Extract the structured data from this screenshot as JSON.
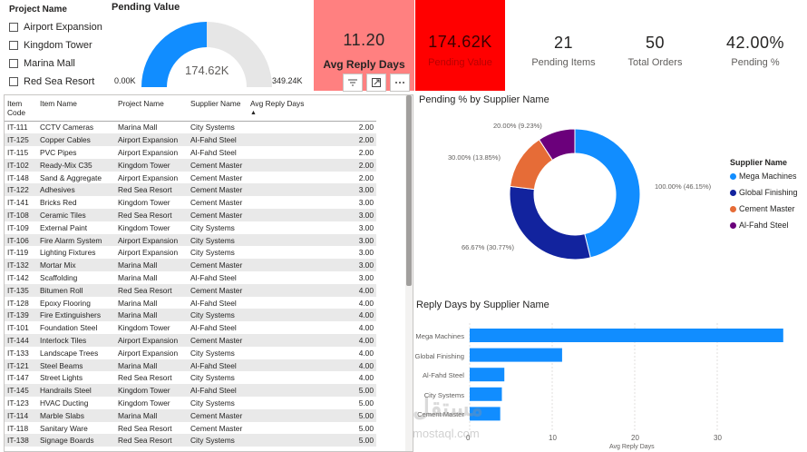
{
  "slicer": {
    "title": "Project Name",
    "items": [
      "Airport Expansion",
      "Kingdom Tower",
      "Marina Mall",
      "Red Sea Resort"
    ]
  },
  "gauge": {
    "title": "Pending Value",
    "value": "174.62K",
    "min": "0.00K",
    "max": "349.24K",
    "fill_fraction": 0.5,
    "fill_color": "#118dff",
    "track_color": "#e6e6e6"
  },
  "cards": {
    "avg_reply": {
      "value": "11.20",
      "label": "Avg Reply Days",
      "bg": "#ff8080"
    },
    "pending_value": {
      "value": "174.62K",
      "label": "Pending Value",
      "bg": "#ff0000"
    },
    "pending_items": {
      "value": "21",
      "label": "Pending Items"
    },
    "total_orders": {
      "value": "50",
      "label": "Total Orders"
    },
    "pending_pct": {
      "value": "42.00%",
      "label": "Pending %"
    }
  },
  "visual_header": {
    "icons": [
      "filter-icon",
      "focus-mode-icon",
      "more-options-icon"
    ]
  },
  "table": {
    "columns": [
      "Item Code",
      "Item Name",
      "Project Name",
      "Supplier Name",
      "Avg Reply Days"
    ],
    "sort_column": "Avg Reply Days",
    "rows": [
      [
        "IT-111",
        "CCTV Cameras",
        "Marina Mall",
        "City Systems",
        "2.00"
      ],
      [
        "IT-125",
        "Copper Cables",
        "Airport Expansion",
        "Al-Fahd Steel",
        "2.00"
      ],
      [
        "IT-115",
        "PVC Pipes",
        "Airport Expansion",
        "Al-Fahd Steel",
        "2.00"
      ],
      [
        "IT-102",
        "Ready-Mix C35",
        "Kingdom Tower",
        "Cement Master",
        "2.00"
      ],
      [
        "IT-148",
        "Sand & Aggregate",
        "Airport Expansion",
        "Cement Master",
        "2.00"
      ],
      [
        "IT-122",
        "Adhesives",
        "Red Sea Resort",
        "Cement Master",
        "3.00"
      ],
      [
        "IT-141",
        "Bricks Red",
        "Kingdom Tower",
        "Cement Master",
        "3.00"
      ],
      [
        "IT-108",
        "Ceramic Tiles",
        "Red Sea Resort",
        "Cement Master",
        "3.00"
      ],
      [
        "IT-109",
        "External Paint",
        "Kingdom Tower",
        "City Systems",
        "3.00"
      ],
      [
        "IT-106",
        "Fire Alarm System",
        "Airport Expansion",
        "City Systems",
        "3.00"
      ],
      [
        "IT-119",
        "Lighting Fixtures",
        "Airport Expansion",
        "City Systems",
        "3.00"
      ],
      [
        "IT-132",
        "Mortar Mix",
        "Marina Mall",
        "Cement Master",
        "3.00"
      ],
      [
        "IT-142",
        "Scaffolding",
        "Marina Mall",
        "Al-Fahd Steel",
        "3.00"
      ],
      [
        "IT-135",
        "Bitumen Roll",
        "Red Sea Resort",
        "Cement Master",
        "4.00"
      ],
      [
        "IT-128",
        "Epoxy Flooring",
        "Marina Mall",
        "Al-Fahd Steel",
        "4.00"
      ],
      [
        "IT-139",
        "Fire Extinguishers",
        "Marina Mall",
        "City Systems",
        "4.00"
      ],
      [
        "IT-101",
        "Foundation Steel",
        "Kingdom Tower",
        "Al-Fahd Steel",
        "4.00"
      ],
      [
        "IT-144",
        "Interlock Tiles",
        "Airport Expansion",
        "Cement Master",
        "4.00"
      ],
      [
        "IT-133",
        "Landscape Trees",
        "Airport Expansion",
        "City Systems",
        "4.00"
      ],
      [
        "IT-121",
        "Steel Beams",
        "Marina Mall",
        "Al-Fahd Steel",
        "4.00"
      ],
      [
        "IT-147",
        "Street Lights",
        "Red Sea Resort",
        "City Systems",
        "4.00"
      ],
      [
        "IT-145",
        "Handrails Steel",
        "Kingdom Tower",
        "Al-Fahd Steel",
        "5.00"
      ],
      [
        "IT-123",
        "HVAC Ducting",
        "Kingdom Tower",
        "City Systems",
        "5.00"
      ],
      [
        "IT-114",
        "Marble Slabs",
        "Marina Mall",
        "Cement Master",
        "5.00"
      ],
      [
        "IT-118",
        "Sanitary Ware",
        "Red Sea Resort",
        "Cement Master",
        "5.00"
      ],
      [
        "IT-138",
        "Signage Boards",
        "Red Sea Resort",
        "City Systems",
        "5.00"
      ]
    ]
  },
  "donut": {
    "title": "Pending % by Supplier Name",
    "legend_title": "Supplier Name",
    "labels": [
      "100.00% (46.15%)",
      "66.67% (30.77%)",
      "30.00% (13.85%)",
      "20.00% (9.23%)"
    ]
  },
  "bar": {
    "title": "Reply Days by Supplier Name",
    "xlabel": "Avg Reply Days",
    "ticks": [
      "0",
      "10",
      "20",
      "30"
    ]
  },
  "chart_data": [
    {
      "type": "pie",
      "title": "Pending % by Supplier Name",
      "legend_title": "Supplier Name",
      "legend_position": "right",
      "categories": [
        "Mega Machines",
        "Global Finishing",
        "Cement Master",
        "Al-Fahd Steel"
      ],
      "values": [
        100.0,
        66.67,
        30.0,
        20.0
      ],
      "share_percent": [
        46.15,
        30.77,
        13.85,
        9.23
      ],
      "colors": [
        "#118dff",
        "#12239e",
        "#e66c37",
        "#6b007b"
      ]
    },
    {
      "type": "bar",
      "orientation": "horizontal",
      "title": "Reply Days by Supplier Name",
      "xlabel": "Avg Reply Days",
      "categories": [
        "Mega Machines",
        "Global Finishing",
        "Al-Fahd Steel",
        "City Systems",
        "Cement Master"
      ],
      "values": [
        38.0,
        11.2,
        4.2,
        3.9,
        3.7
      ],
      "xlim": [
        0,
        40
      ],
      "grid": true,
      "color": "#118dff"
    }
  ],
  "watermark": {
    "line1": "مستقل",
    "line2": "mostaql.com"
  }
}
